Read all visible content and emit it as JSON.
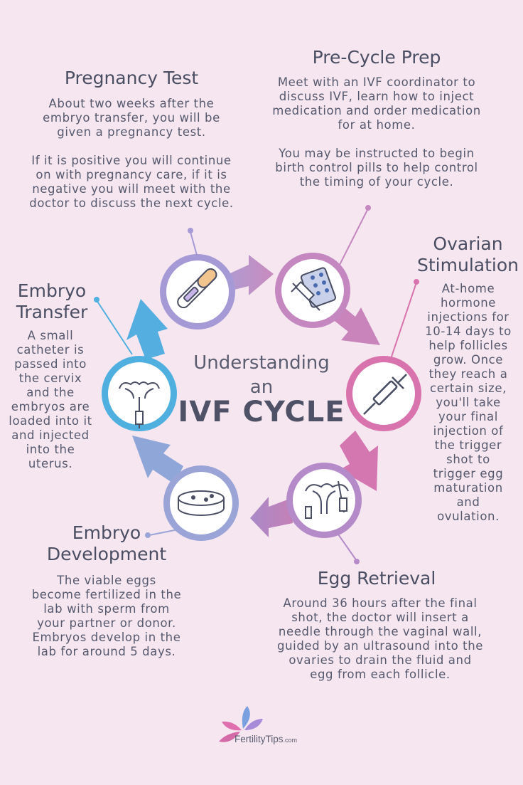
{
  "center": {
    "line1": "Understanding",
    "line2": "an",
    "line3": "IVF CYCLE"
  },
  "steps": [
    {
      "title": "Pre-Cycle Prep",
      "paragraphs": [
        "Meet with an IVF coordinator to discuss  IVF, learn how to inject  medication and order medication for at home.",
        "You may be instructed to begin birth control pills to help control the timing of your cycle."
      ],
      "icon": "pill-pack-syringe-icon"
    },
    {
      "title": "Ovarian Stimulation",
      "paragraphs": [
        "At-home hormone injections for 10-14 days to help follicles grow. Once they reach a certain size, you'll take your final injection of the trigger shot to trigger egg maturation and ovulation."
      ],
      "icon": "syringe-icon"
    },
    {
      "title": "Egg Retrieval",
      "paragraphs": [
        "Around 36 hours after the final shot, the doctor will insert a needle through the vaginal wall, guided by an ultrasound into the ovaries to drain the fluid and egg from each follicle."
      ],
      "icon": "uterus-needle-icon"
    },
    {
      "title": "Embryo Development",
      "paragraphs": [
        "The viable eggs become fertilized in the lab with sperm from your partner or donor. Embryos develop in the lab for around 5 days."
      ],
      "icon": "petri-dish-icon"
    },
    {
      "title": "Embryo Transfer",
      "paragraphs": [
        "A small catheter is passed into the cervix and the embryos are loaded into it and injected into the uterus."
      ],
      "icon": "uterus-catheter-icon"
    },
    {
      "title": "Pregnancy Test",
      "paragraphs": [
        "About two weeks after the embryo transfer, you will be given a pregnancy test.",
        "If it is positive you will continue on with pregnancy care, if it is negative you will meet with the doctor to discuss the next cycle."
      ],
      "icon": "pregnancy-test-icon"
    }
  ],
  "brand": {
    "name": "FertilityTips",
    "suffix": ".com"
  },
  "colors": {
    "background": "#f6e6f0",
    "text": "#4a4e63",
    "pre_cycle": "#c487c0",
    "ovarian": "#d873ad",
    "egg": "#b58ac8",
    "development": "#9aa4d6",
    "transfer": "#4fb0e0",
    "pregnancy": "#a59ad6"
  }
}
